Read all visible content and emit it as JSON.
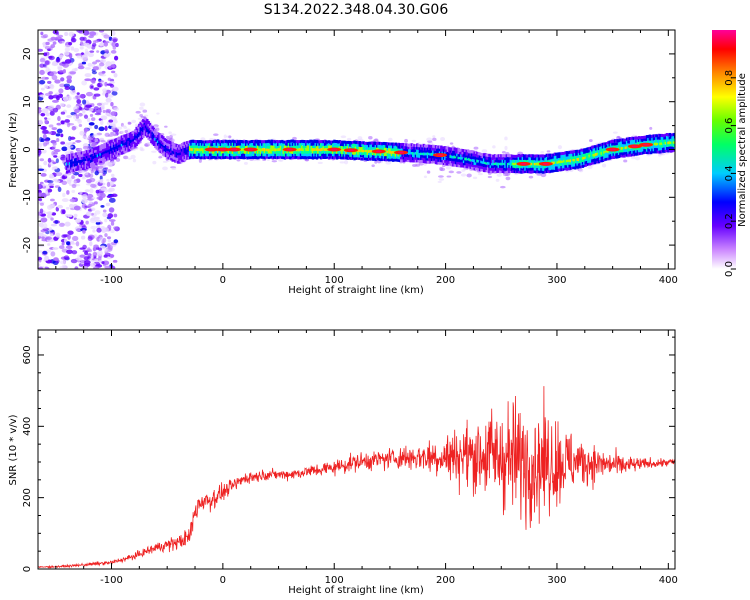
{
  "figure": {
    "title": "S134.2022.348.04.30.G06"
  },
  "chart_data": [
    {
      "type": "heatmap",
      "xlabel": "Height of straight line (km)",
      "ylabel": "Frequency (Hz)",
      "xlim": [
        -166,
        406
      ],
      "ylim": [
        -25,
        25
      ],
      "xticks": [
        -100,
        0,
        100,
        200,
        300,
        400
      ],
      "yticks": [
        -20,
        -10,
        0,
        10,
        20
      ],
      "colorbar": {
        "label": "Normalized spectral amplitude",
        "range": [
          0,
          1
        ],
        "ticks": [
          "0.0",
          "0.2",
          "0.4",
          "0.6",
          "0.8"
        ],
        "colors": [
          "#ffffff",
          "#9900ff",
          "#0000ff",
          "#00ffff",
          "#00ff00",
          "#ffff00",
          "#ff8800",
          "#ff0000",
          "#ff00aa"
        ]
      },
      "ridge": {
        "x": [
          -140,
          -120,
          -100,
          -80,
          -70,
          -60,
          -50,
          -40,
          -30,
          -20,
          0,
          50,
          100,
          150,
          190,
          220,
          240,
          260,
          290,
          320,
          350,
          380,
          406
        ],
        "y": [
          -3,
          -2,
          0,
          2,
          5,
          2,
          0,
          -1,
          0,
          0,
          0,
          0,
          0,
          -0.5,
          -1,
          -2,
          -3,
          -3,
          -3,
          -2,
          0,
          1,
          1.5
        ]
      },
      "grid": false
    },
    {
      "type": "line",
      "xlabel": "Height of straight line (km)",
      "ylabel": "SNR (10 * v/v)",
      "xlim": [
        -166,
        406
      ],
      "ylim": [
        0,
        670
      ],
      "xticks": [
        -100,
        0,
        100,
        200,
        300,
        400
      ],
      "yticks": [
        0,
        200,
        400,
        600
      ],
      "series": [
        {
          "color": "#ee2222",
          "x": [
            -166,
            -140,
            -100,
            -80,
            -60,
            -40,
            -30,
            -25,
            -20,
            -10,
            0,
            20,
            40,
            60,
            80,
            100,
            120,
            150,
            180,
            200,
            220,
            240,
            260,
            280,
            300,
            320,
            340,
            360,
            380,
            406
          ],
          "y": [
            5,
            8,
            18,
            35,
            60,
            75,
            90,
            160,
            190,
            195,
            215,
            255,
            265,
            265,
            275,
            285,
            300,
            310,
            315,
            315,
            320,
            320,
            310,
            300,
            300,
            300,
            295,
            290,
            295,
            300
          ],
          "spread": [
            3,
            4,
            8,
            12,
            20,
            30,
            35,
            45,
            50,
            45,
            30,
            25,
            20,
            20,
            25,
            30,
            35,
            40,
            60,
            90,
            130,
            180,
            230,
            230,
            180,
            100,
            60,
            40,
            20,
            15
          ]
        }
      ],
      "grid": false
    }
  ]
}
